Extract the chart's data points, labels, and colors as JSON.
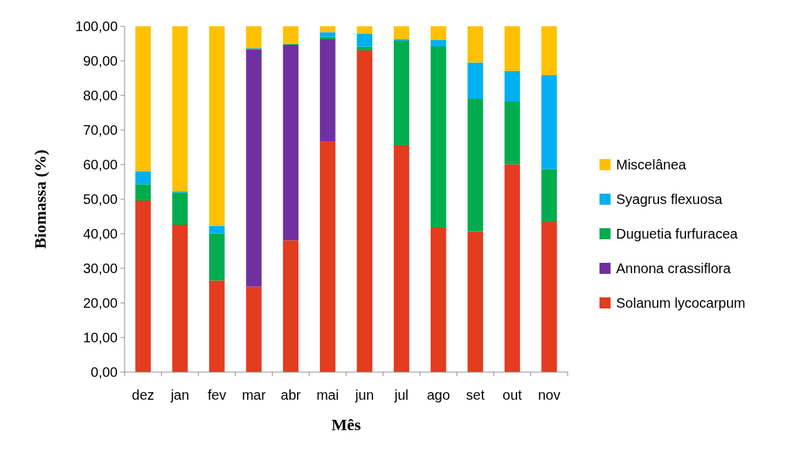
{
  "chart_data": {
    "type": "bar",
    "stacked": true,
    "xlabel": "Mês",
    "ylabel": "Biomassa (%)",
    "categories": [
      "dez",
      "jan",
      "fev",
      "mar",
      "abr",
      "mai",
      "jun",
      "jul",
      "ago",
      "set",
      "out",
      "nov"
    ],
    "series": [
      {
        "name": "Solanum lycocarpum",
        "color": "#e33c1e",
        "values": [
          49.6,
          42.6,
          26.5,
          24.7,
          38.1,
          66.8,
          93.0,
          65.6,
          41.8,
          40.7,
          60.1,
          43.4
        ]
      },
      {
        "name": "Annona crassiflora",
        "color": "#7030a0",
        "values": [
          0,
          0,
          0,
          68.5,
          56.5,
          29.4,
          0,
          0,
          0,
          0,
          0,
          0
        ]
      },
      {
        "name": "Duguetia furfuracea",
        "color": "#00ac4e",
        "values": [
          4.7,
          9.3,
          13.6,
          0,
          0.3,
          0.7,
          1.1,
          30.2,
          52.4,
          38.3,
          18.1,
          15.3
        ]
      },
      {
        "name": "Syagrus flexuosa",
        "color": "#00b0f0",
        "values": [
          3.8,
          0.4,
          2.2,
          0.4,
          0,
          1.4,
          3.7,
          0.4,
          1.8,
          10.5,
          8.8,
          27.1
        ]
      },
      {
        "name": "Miscelânea",
        "color": "#ffc000",
        "values": [
          41.9,
          47.7,
          57.7,
          6.4,
          5.1,
          1.7,
          2.2,
          3.8,
          4.0,
          10.5,
          13.0,
          14.2
        ]
      }
    ],
    "ylim": [
      0,
      100
    ],
    "yticks": [
      {
        "value": 0,
        "label": "0,00"
      },
      {
        "value": 10,
        "label": "10,00"
      },
      {
        "value": 20,
        "label": "20,00"
      },
      {
        "value": 30,
        "label": "30,00"
      },
      {
        "value": 40,
        "label": "40,00"
      },
      {
        "value": 50,
        "label": "50,00"
      },
      {
        "value": 60,
        "label": "60,00"
      },
      {
        "value": 70,
        "label": "70,00"
      },
      {
        "value": 80,
        "label": "80,00"
      },
      {
        "value": 90,
        "label": "90,00"
      },
      {
        "value": 100,
        "label": "100,00"
      }
    ],
    "legend": "right"
  }
}
